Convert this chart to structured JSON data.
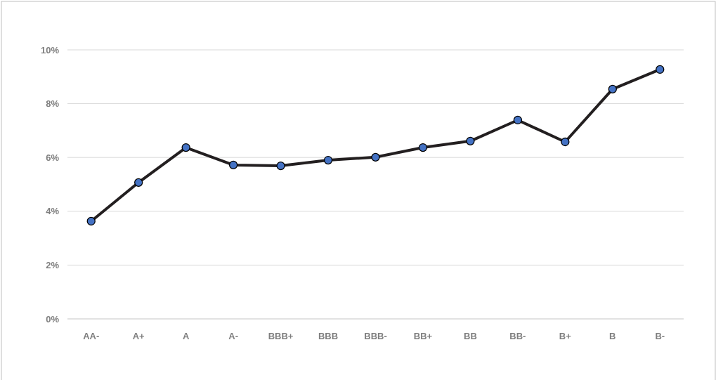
{
  "chart_data": {
    "type": "line",
    "categories": [
      "AA-",
      "A+",
      "A",
      "A-",
      "BBB+",
      "BBB",
      "BBB-",
      "BB+",
      "BB",
      "BB-",
      "B+",
      "B",
      "B-"
    ],
    "series": [
      {
        "color": "#231f20",
        "values": [
          3.63,
          5.07,
          6.37,
          5.72,
          5.69,
          5.9,
          6.01,
          6.37,
          6.61,
          7.39,
          6.58,
          8.54,
          9.27
        ]
      }
    ],
    "ylim": [
      0,
      10
    ],
    "yticks": [
      {
        "value": 0,
        "label": "0%"
      },
      {
        "value": 2,
        "label": "2%"
      },
      {
        "value": 4,
        "label": "4%"
      },
      {
        "value": 6,
        "label": "6%"
      },
      {
        "value": 8,
        "label": "8%"
      },
      {
        "value": 10,
        "label": "10%"
      }
    ],
    "grid": "y",
    "marker": "circle",
    "line_style": "solid"
  }
}
